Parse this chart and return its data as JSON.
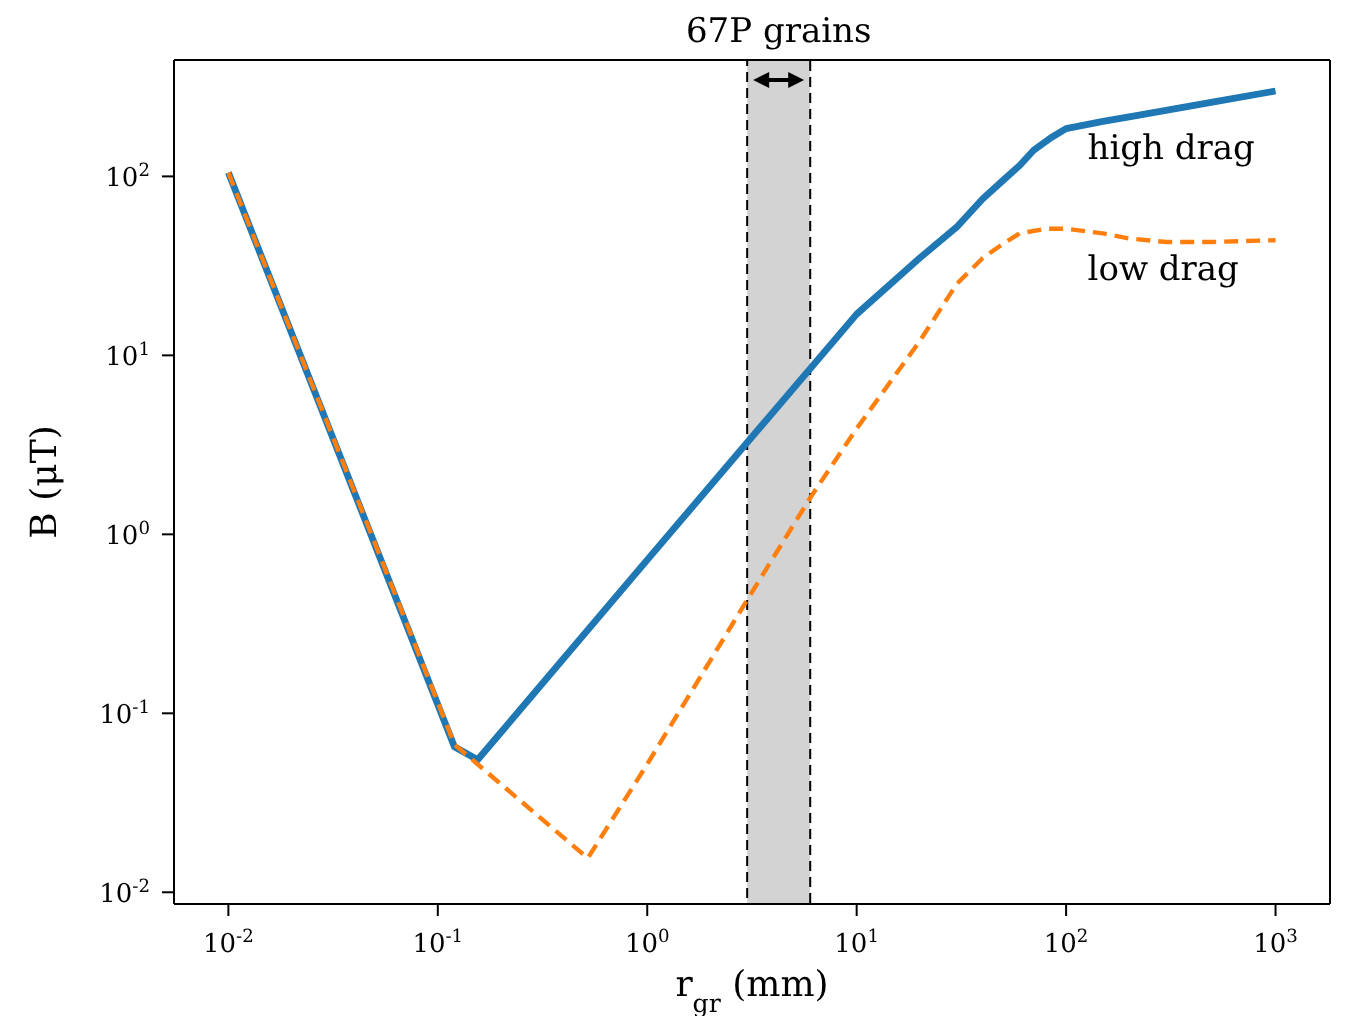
{
  "chart_data": {
    "type": "line",
    "xlabel": "r$_{gr}$ (mm)",
    "ylabel": "B (μT)",
    "log": "xy",
    "xlim": [
      0.0055,
      1820
    ],
    "ylim": [
      0.0086,
      447
    ],
    "xticks": [
      {
        "value": 0.01,
        "label": "10$^{-2}$"
      },
      {
        "value": 0.1,
        "label": "10$^{-1}$"
      },
      {
        "value": 1,
        "label": "10$^{0}$"
      },
      {
        "value": 10,
        "label": "10$^{1}$"
      },
      {
        "value": 100,
        "label": "10$^{2}$"
      },
      {
        "value": 1000,
        "label": "10$^{3}$"
      }
    ],
    "yticks": [
      {
        "value": 0.01,
        "label": "10$^{-2}$"
      },
      {
        "value": 0.1,
        "label": "10$^{-1}$"
      },
      {
        "value": 1,
        "label": "10$^{0}$"
      },
      {
        "value": 10,
        "label": "10$^{1}$"
      },
      {
        "value": 100,
        "label": "10$^{2}$"
      }
    ],
    "marker": "none",
    "bands": [
      {
        "axis": "x",
        "from": 3,
        "to": 6,
        "label": "67P grains",
        "color": "#d3d3d3"
      }
    ],
    "series": [
      {
        "name": "high drag",
        "color": "#1f77b4",
        "line_style": "solid",
        "x": [
          0.01,
          0.12,
          0.155,
          1,
          10,
          20,
          30,
          40,
          50,
          60,
          70,
          85,
          100,
          150,
          200,
          500,
          1000
        ],
        "values": [
          105,
          0.065,
          0.055,
          0.72,
          17,
          35,
          52,
          75,
          95,
          115,
          140,
          165,
          185,
          203,
          215,
          260,
          300
        ]
      },
      {
        "name": "low drag",
        "color": "#ff7f0e",
        "line_style": "dashed",
        "x": [
          0.01,
          0.12,
          0.52,
          1,
          3,
          6,
          10,
          20,
          30,
          40,
          50,
          60,
          80,
          100,
          150,
          200,
          300,
          500,
          1000
        ],
        "values": [
          105,
          0.067,
          0.0155,
          0.052,
          0.43,
          1.6,
          3.9,
          12,
          25,
          35,
          42,
          48,
          51,
          51,
          48,
          45,
          43,
          43,
          44
        ]
      }
    ]
  }
}
